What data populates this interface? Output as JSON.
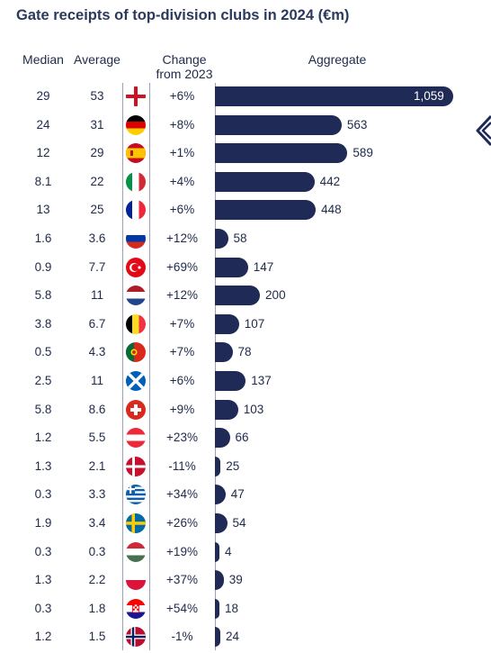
{
  "title": "Gate receipts of top-division clubs in 2024 (€m)",
  "columns": {
    "median": "Median",
    "average": "Average",
    "change_line1": "Change",
    "change_line2": "from 2023",
    "aggregate": "Aggregate"
  },
  "colors": {
    "bar": "#1f2a56",
    "text": "#1f2a4a",
    "divider": "#9aa3b5"
  },
  "chart_data": {
    "type": "bar",
    "orientation": "horizontal",
    "title": "Gate receipts of top-division clubs in 2024 (€m)",
    "categories": [
      "England",
      "Germany",
      "Spain",
      "Italy",
      "France",
      "Russia",
      "Türkiye",
      "Netherlands",
      "Belgium",
      "Portugal",
      "Scotland",
      "Switzerland",
      "Austria",
      "Denmark",
      "Greece",
      "Sweden",
      "Hungary",
      "Poland",
      "Croatia",
      "Norway"
    ],
    "series": [
      {
        "name": "Aggregate",
        "values": [
          1059,
          563,
          589,
          442,
          448,
          58,
          147,
          200,
          107,
          78,
          137,
          103,
          66,
          25,
          47,
          54,
          4,
          39,
          18,
          24
        ]
      }
    ],
    "value_labels": [
      "1,059",
      "563",
      "589",
      "442",
      "448",
      "58",
      "147",
      "200",
      "107",
      "78",
      "137",
      "103",
      "66",
      "25",
      "47",
      "54",
      "4",
      "39",
      "18",
      "24"
    ],
    "median": [
      "29",
      "24",
      "12",
      "8.1",
      "13",
      "1.6",
      "0.9",
      "5.8",
      "3.8",
      "0.5",
      "2.5",
      "5.8",
      "1.2",
      "1.3",
      "0.3",
      "1.9",
      "0.3",
      "1.3",
      "0.3",
      "1.2"
    ],
    "average": [
      "53",
      "31",
      "29",
      "22",
      "25",
      "3.6",
      "7.7",
      "11",
      "6.7",
      "4.3",
      "11",
      "8.6",
      "5.5",
      "2.1",
      "3.3",
      "3.4",
      "0.3",
      "2.2",
      "1.8",
      "1.5"
    ],
    "change": [
      "+6%",
      "+8%",
      "+1%",
      "+4%",
      "+6%",
      "+12%",
      "+69%",
      "+12%",
      "+7%",
      "+7%",
      "+6%",
      "+9%",
      "+23%",
      "-11%",
      "+34%",
      "+26%",
      "+19%",
      "+37%",
      "+54%",
      "-1%"
    ],
    "flags": [
      "england-flag-icon",
      "germany-flag-icon",
      "spain-flag-icon",
      "italy-flag-icon",
      "france-flag-icon",
      "russia-flag-icon",
      "turkey-flag-icon",
      "netherlands-flag-icon",
      "belgium-flag-icon",
      "portugal-flag-icon",
      "scotland-flag-icon",
      "switzerland-flag-icon",
      "austria-flag-icon",
      "denmark-flag-icon",
      "greece-flag-icon",
      "sweden-flag-icon",
      "hungary-flag-icon",
      "poland-flag-icon",
      "croatia-flag-icon",
      "norway-flag-icon"
    ],
    "xlim": [
      0,
      1059
    ],
    "grid": false,
    "legend": "none"
  }
}
